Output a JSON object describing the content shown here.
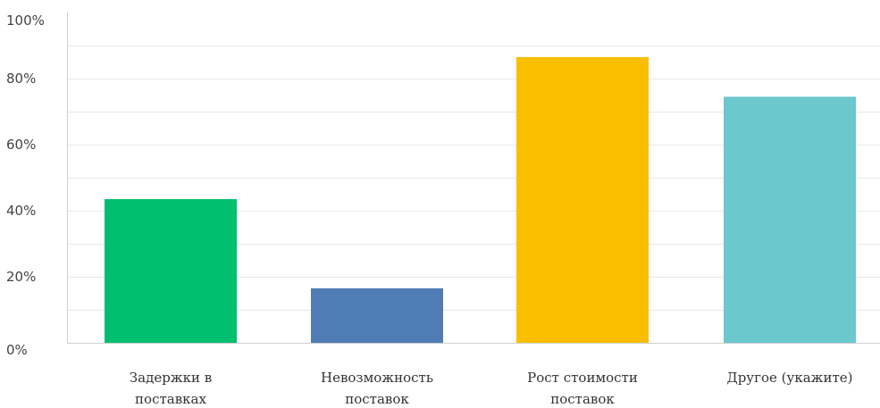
{
  "chart_data": {
    "type": "bar",
    "categories": [
      [
        "Задержки в",
        "поставках"
      ],
      [
        "Невозможность",
        "поставок"
      ],
      [
        "Рост стоимости",
        "поставок"
      ],
      [
        "Другое (укажите)"
      ]
    ],
    "values": [
      43.5,
      16.5,
      86.5,
      74.5
    ],
    "colors": [
      "#00bf6f",
      "#507cb6",
      "#f9be00",
      "#6bc8cd"
    ],
    "ylim": [
      0,
      100
    ],
    "yticks": [
      0,
      20,
      40,
      60,
      80,
      100
    ],
    "ytick_labels": [
      "0%",
      "20%",
      "40%",
      "60%",
      "80%",
      "100%"
    ],
    "minor_gridlines": [
      10,
      30,
      50,
      70,
      90
    ],
    "grid": true,
    "title": "",
    "xlabel": "",
    "ylabel": ""
  }
}
